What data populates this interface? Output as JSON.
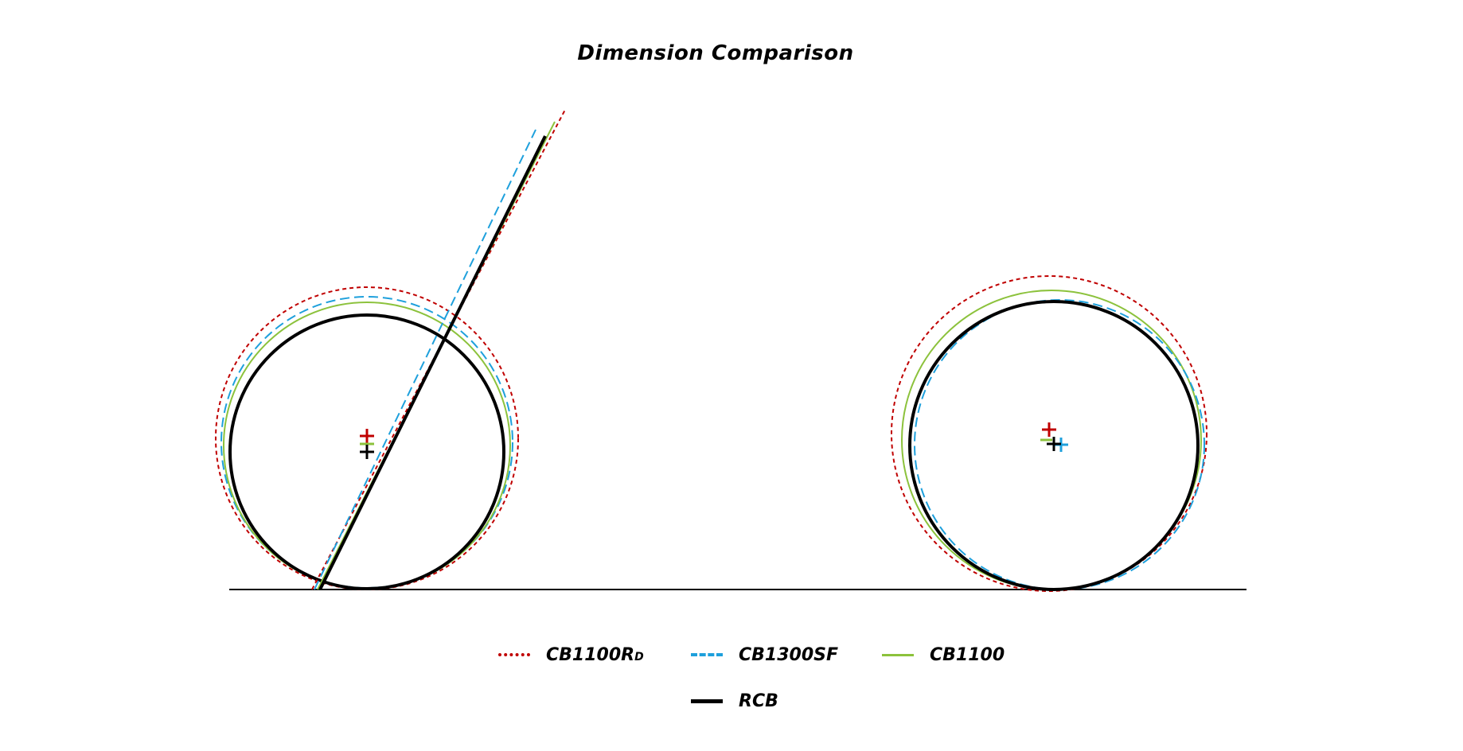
{
  "title": "Dimension Comparison",
  "colors": {
    "cb1100rd": "#c00000",
    "cb1300sf": "#1ea0dc",
    "cb1100": "#8cc23c",
    "rcb": "#000000",
    "ground": "#000000"
  },
  "legend": [
    {
      "key": "cb1100rd",
      "label": "CB1100R",
      "suffix": "D",
      "style": "dotted"
    },
    {
      "key": "cb1300sf",
      "label": "CB1300SF",
      "suffix": "",
      "style": "dashed"
    },
    {
      "key": "cb1100",
      "label": "CB1100",
      "suffix": "",
      "style": "solid"
    },
    {
      "key": "rcb",
      "label": "RCB",
      "suffix": "",
      "style": "solid-thick"
    }
  ]
}
